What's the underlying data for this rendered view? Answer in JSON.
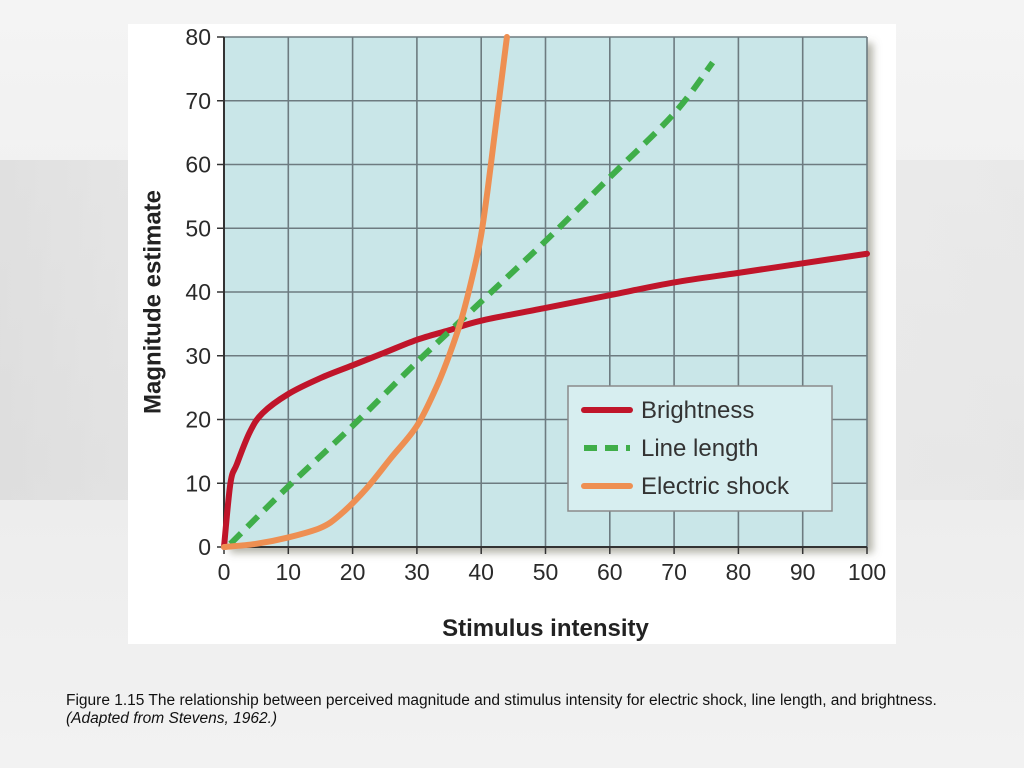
{
  "caption": {
    "text": "Figure 1.15  The relationship between perceived magnitude and stimulus intensity for electric shock, line length, and brightness.",
    "source": "(Adapted from Stevens, 1962.)"
  },
  "chart_data": {
    "type": "line",
    "title": "",
    "xlabel": "Stimulus intensity",
    "ylabel": "Magnitude estimate",
    "xlim": [
      0,
      100
    ],
    "ylim": [
      0,
      80
    ],
    "xticks": [
      0,
      10,
      20,
      30,
      40,
      50,
      60,
      70,
      80,
      90,
      100
    ],
    "yticks": [
      0,
      10,
      20,
      30,
      40,
      50,
      60,
      70,
      80
    ],
    "grid": true,
    "legend_position": "bottom-right",
    "plot_background": "#c9e6e8",
    "series": [
      {
        "name": "Brightness",
        "color": "#c0152a",
        "style": "solid",
        "x": [
          0,
          1,
          2,
          4,
          6,
          10,
          15,
          20,
          25,
          30,
          35,
          40,
          50,
          60,
          70,
          80,
          90,
          100
        ],
        "y": [
          0,
          10,
          13,
          18,
          21,
          24,
          26.5,
          28.5,
          30.5,
          32.5,
          34,
          35.5,
          37.5,
          39.5,
          41.5,
          43,
          44.5,
          46
        ]
      },
      {
        "name": "Line length",
        "color": "#3fae49",
        "style": "dashed",
        "x": [
          1,
          10,
          20,
          30,
          40,
          50,
          60,
          70,
          76
        ],
        "y": [
          0.5,
          9.5,
          19,
          29,
          38.5,
          48,
          58,
          68,
          76
        ]
      },
      {
        "name": "Electric shock",
        "color": "#ee8f52",
        "style": "solid",
        "x": [
          0,
          5,
          10,
          15,
          18,
          22,
          26,
          30,
          33,
          35,
          37,
          39,
          40,
          41,
          42,
          43,
          44
        ],
        "y": [
          0,
          0.5,
          1.5,
          3,
          5,
          9,
          14,
          19,
          25,
          30,
          36,
          44,
          49,
          56,
          64,
          72,
          80
        ]
      }
    ]
  }
}
